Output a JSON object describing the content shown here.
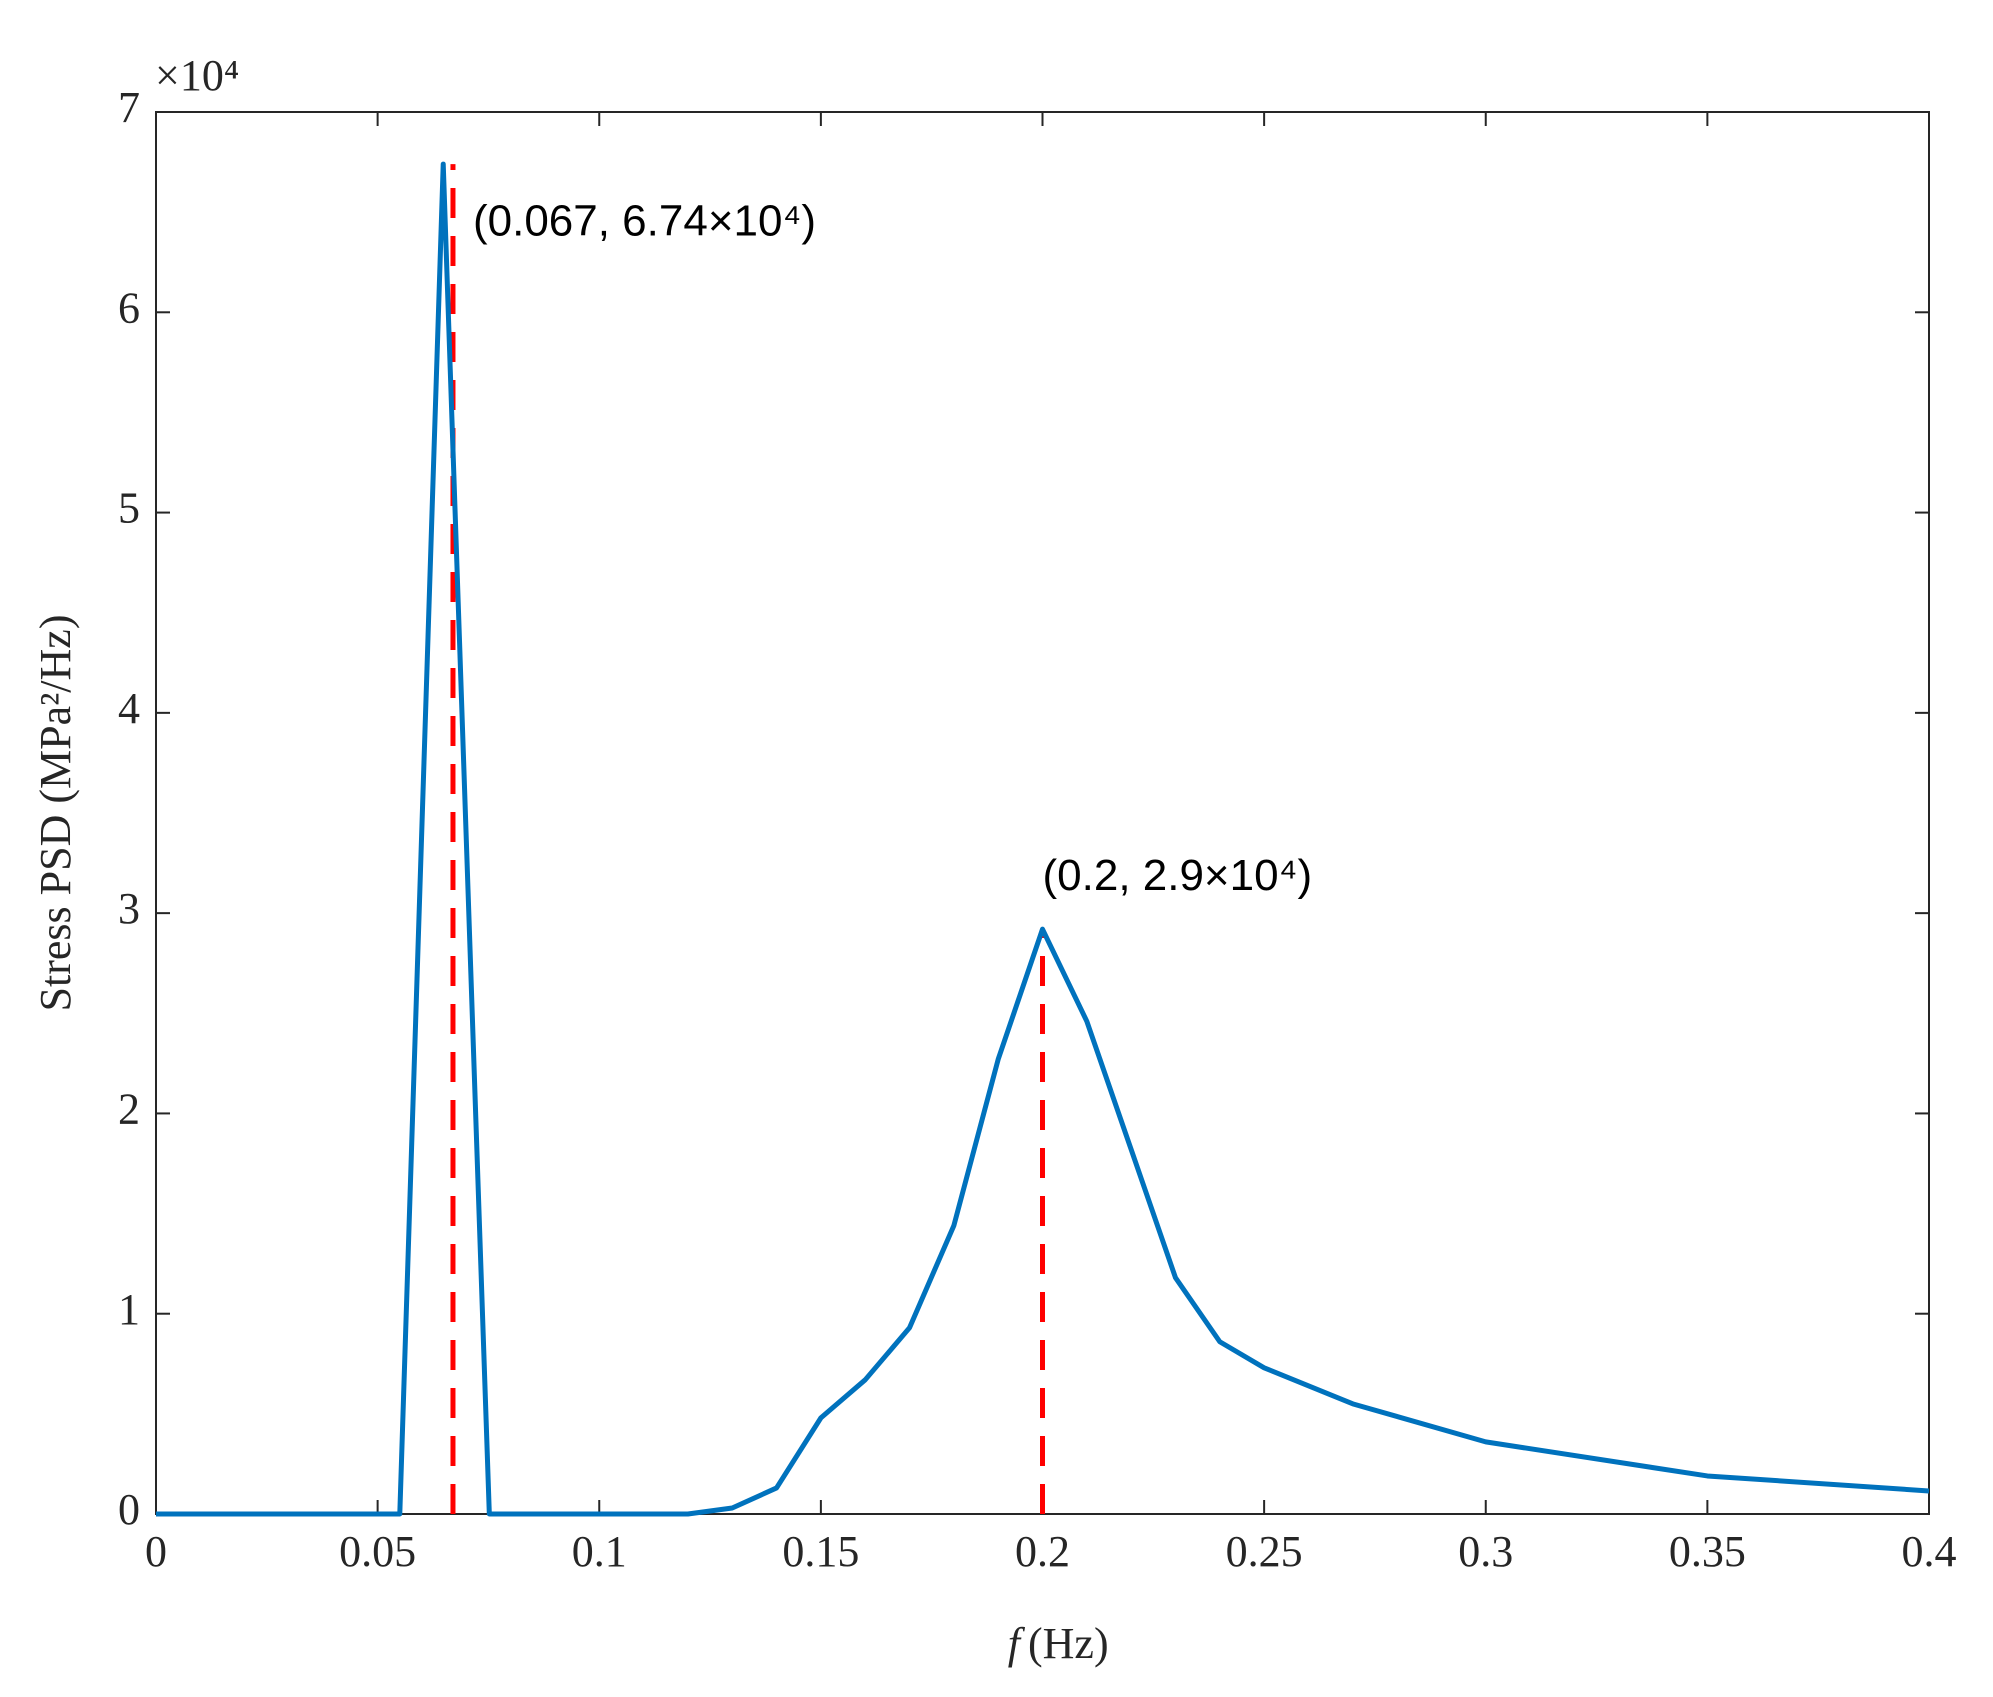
{
  "chart_data": {
    "type": "line",
    "exponent_label": "×10⁴",
    "x_label_symbol": "f",
    "x_label_unit": "(Hz)",
    "y_label": "Stress PSD (MPa²/Hz)",
    "xlim": [
      0,
      0.4
    ],
    "ylim": [
      0,
      7
    ],
    "xticks": [
      0,
      0.05,
      0.1,
      0.15,
      0.2,
      0.25,
      0.3,
      0.35,
      0.4
    ],
    "yticks": [
      0,
      1,
      2,
      3,
      4,
      5,
      6,
      7
    ],
    "series": [
      {
        "color": "#0072bd",
        "x": [
          0,
          0.055,
          0.0648,
          0.0752,
          0.12,
          0.13,
          0.14,
          0.15,
          0.16,
          0.17,
          0.18,
          0.19,
          0.2,
          0.21,
          0.22,
          0.23,
          0.24,
          0.25,
          0.27,
          0.3,
          0.35,
          0.4
        ],
        "values": [
          0,
          0,
          6.74,
          0,
          0,
          0.03,
          0.13,
          0.48,
          0.67,
          0.93,
          1.44,
          2.27,
          2.92,
          2.46,
          1.82,
          1.18,
          0.86,
          0.73,
          0.55,
          0.36,
          0.19,
          0.115
        ]
      }
    ],
    "markers": [
      {
        "x": 0.067,
        "y": 6.74,
        "label": "(0.067, 6.74×10⁴)",
        "color": "#ff0000"
      },
      {
        "x": 0.2,
        "y": 2.9,
        "label": "(0.2, 2.9×10⁴)",
        "color": "#ff0000"
      }
    ]
  }
}
